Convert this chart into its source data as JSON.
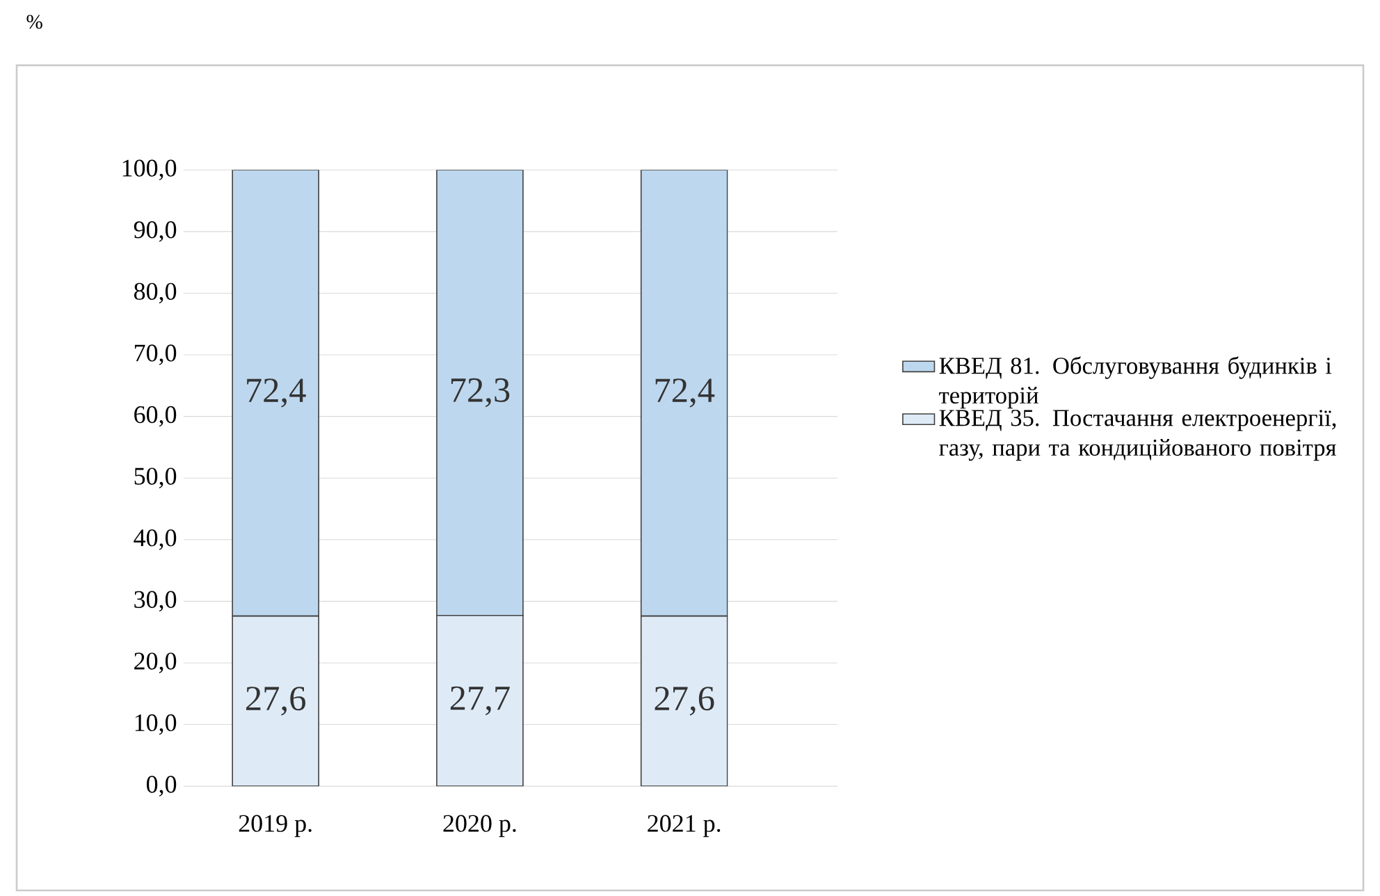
{
  "chart_data": {
    "type": "bar",
    "stacked": true,
    "annotations": [
      "%"
    ],
    "categories": [
      "2019 р.",
      "2020 р.",
      "2021 р."
    ],
    "series": [
      {
        "name": "КВЕД 35. Постачання електроенергії, газу, пари та кондиційованого повітря",
        "color": "#deebf7",
        "values": [
          27.6,
          27.7,
          27.6
        ],
        "value_labels": [
          "27,6",
          "27,7",
          "27,6"
        ]
      },
      {
        "name": "КВЕД 81. Обслуговування будинків і територій",
        "color": "#bdd7ee",
        "values": [
          72.4,
          72.3,
          72.4
        ],
        "value_labels": [
          "72,4",
          "72,3",
          "72,4"
        ]
      }
    ],
    "ylim": [
      0,
      100
    ],
    "yticks": [
      {
        "value": 0,
        "label": "0,0"
      },
      {
        "value": 10,
        "label": "10,0"
      },
      {
        "value": 20,
        "label": "20,0"
      },
      {
        "value": 30,
        "label": "30,0"
      },
      {
        "value": 40,
        "label": "40,0"
      },
      {
        "value": 50,
        "label": "50,0"
      },
      {
        "value": 60,
        "label": "60,0"
      },
      {
        "value": 70,
        "label": "70,0"
      },
      {
        "value": 80,
        "label": "80,0"
      },
      {
        "value": 90,
        "label": "90,0"
      },
      {
        "value": 100,
        "label": "100,0"
      }
    ],
    "grid": "y",
    "legend": "right"
  }
}
